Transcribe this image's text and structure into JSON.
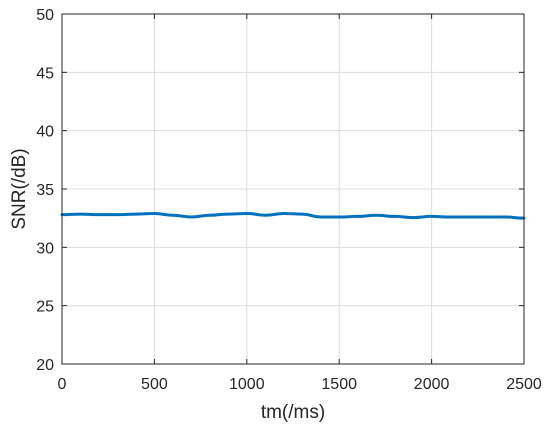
{
  "chart_data": {
    "type": "line",
    "title": "",
    "xlabel": "tm(/ms)",
    "ylabel": "SNR(/dB)",
    "xlim": [
      0,
      2500
    ],
    "ylim": [
      20,
      50
    ],
    "x_ticks": [
      0,
      500,
      1000,
      1500,
      2000,
      2500
    ],
    "y_ticks": [
      20,
      25,
      30,
      35,
      40,
      45,
      50
    ],
    "x_tick_labels": [
      "0",
      "500",
      "1000",
      "1500",
      "2000",
      "2500"
    ],
    "y_tick_labels": [
      "20",
      "25",
      "30",
      "35",
      "40",
      "45",
      "50"
    ],
    "grid": true,
    "series": [
      {
        "color": "#0072BD",
        "x": [
          0,
          100,
          200,
          300,
          400,
          500,
          600,
          700,
          800,
          900,
          1000,
          1100,
          1200,
          1300,
          1400,
          1500,
          1600,
          1700,
          1800,
          1900,
          2000,
          2100,
          2200,
          2300,
          2400,
          2500
        ],
        "y": [
          32.8,
          32.85,
          32.8,
          32.8,
          32.85,
          32.9,
          32.75,
          32.6,
          32.75,
          32.85,
          32.9,
          32.75,
          32.9,
          32.85,
          32.6,
          32.6,
          32.65,
          32.75,
          32.65,
          32.55,
          32.65,
          32.6,
          32.6,
          32.6,
          32.6,
          32.5
        ]
      }
    ]
  }
}
